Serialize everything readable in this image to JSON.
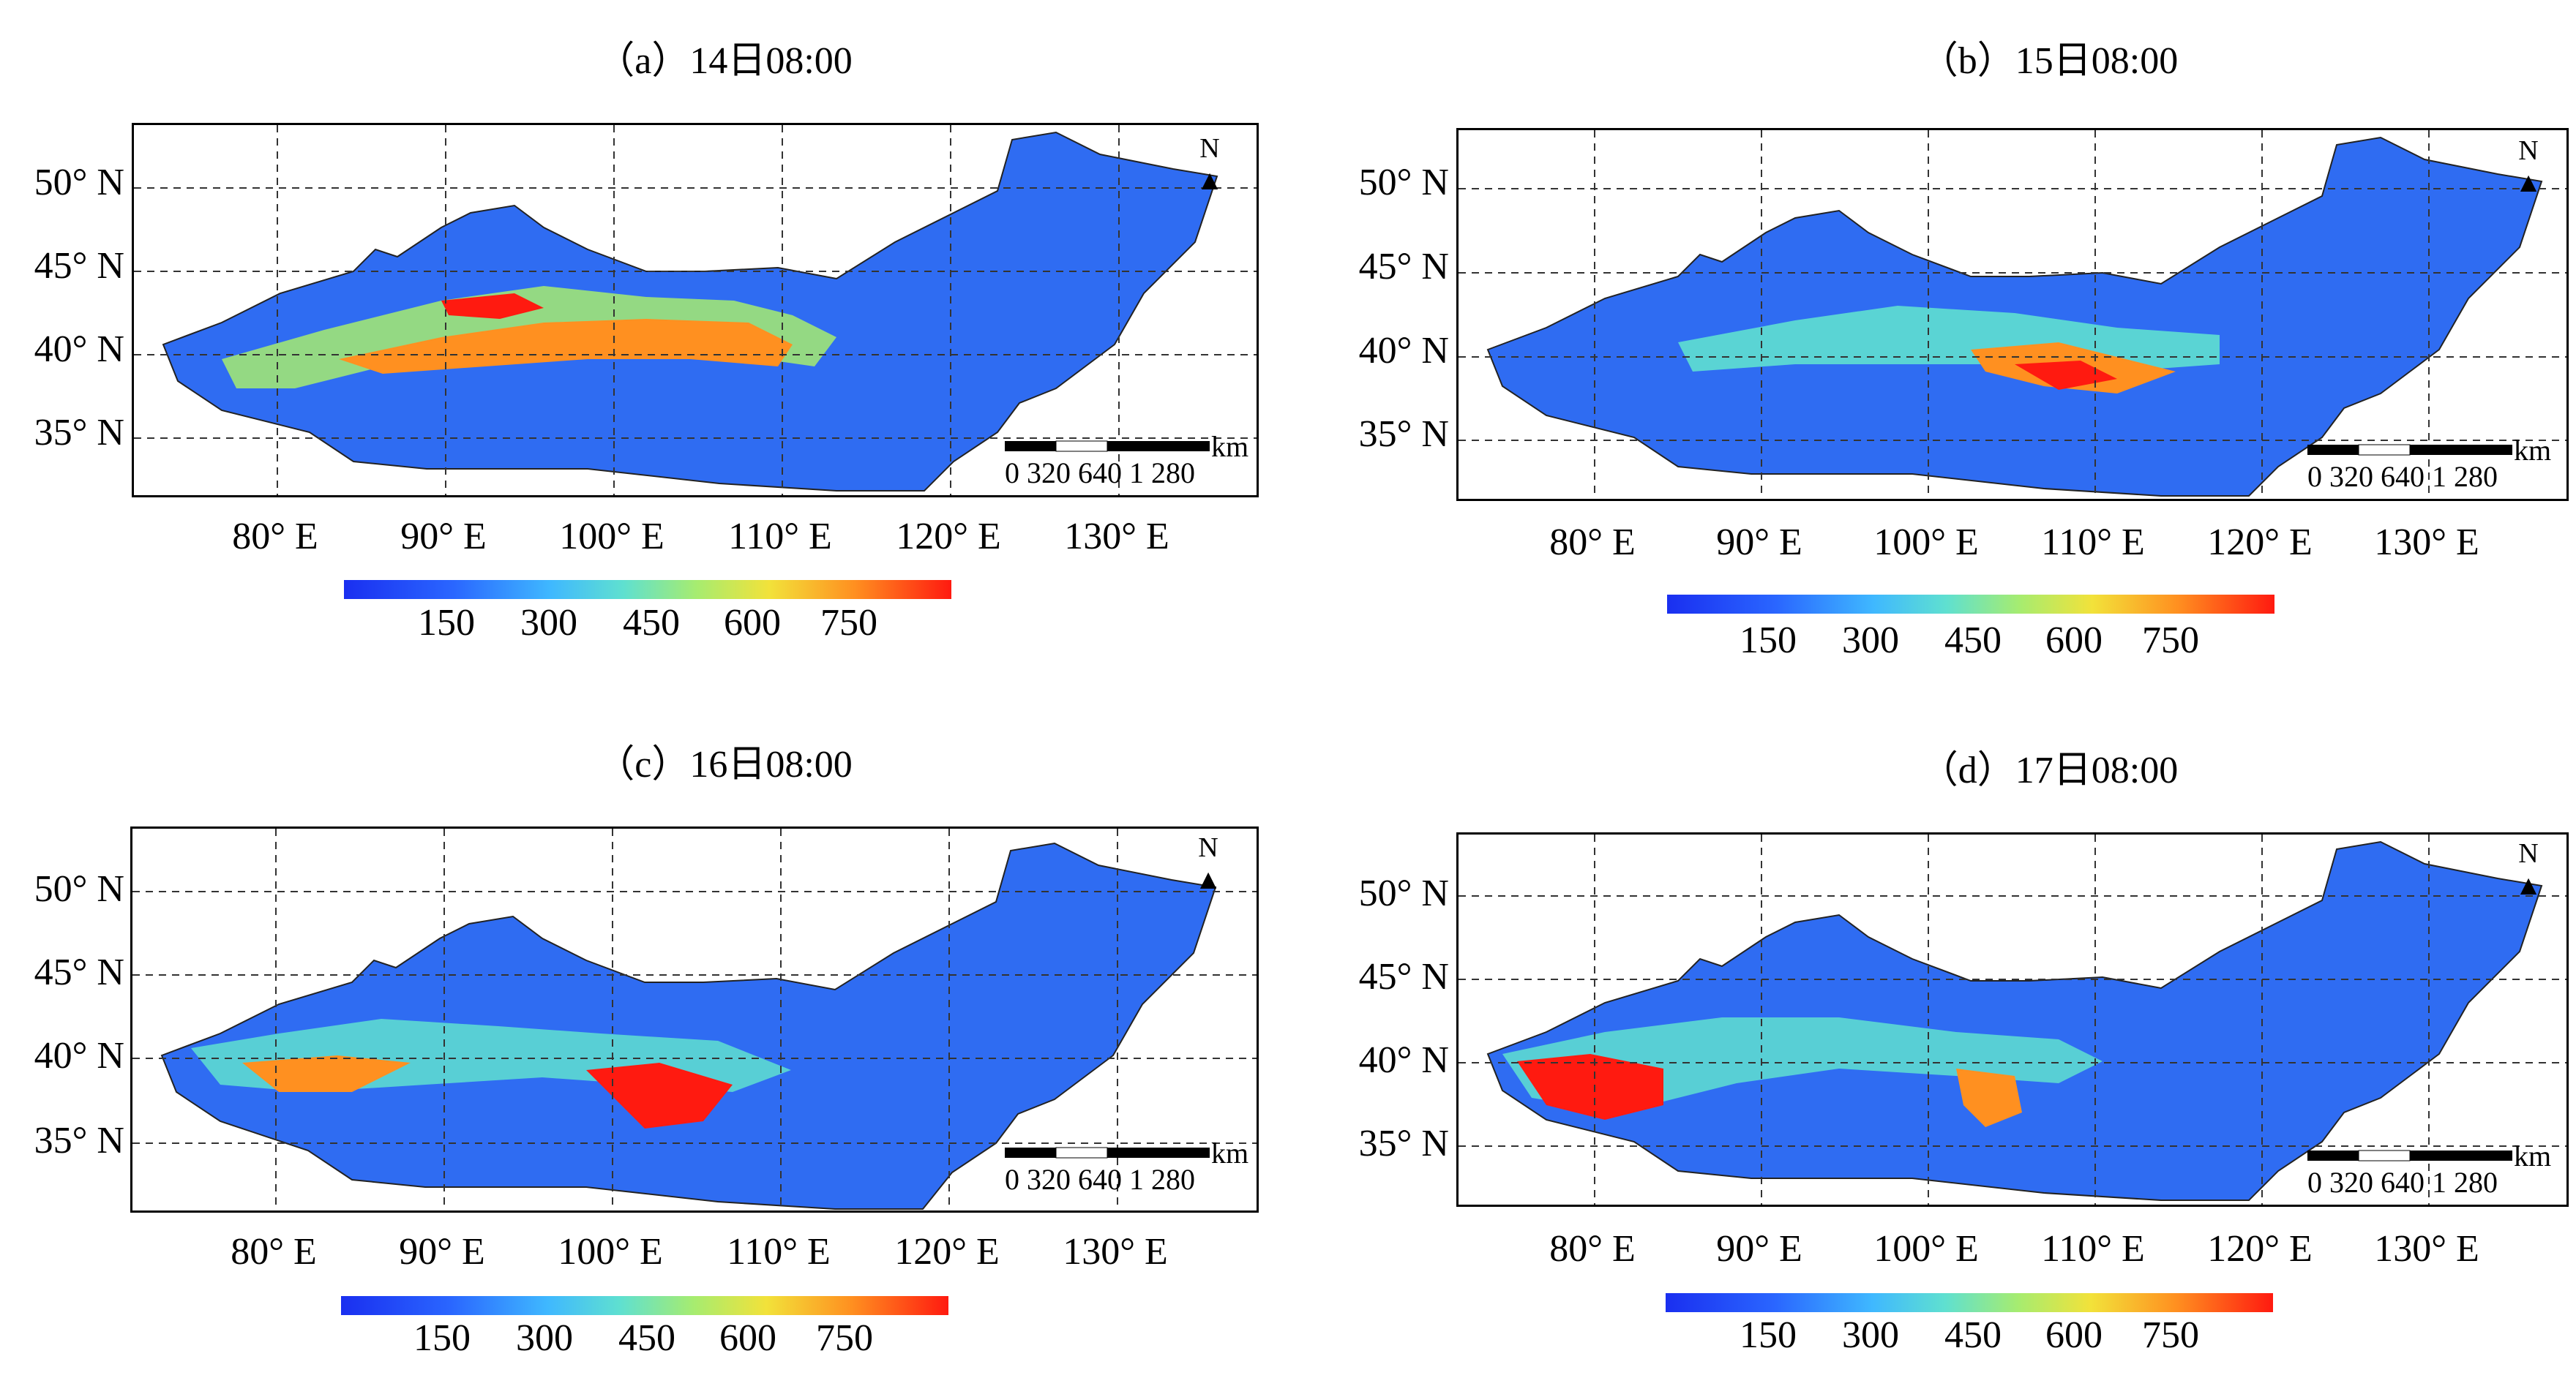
{
  "panels": [
    {
      "title": "（a）14日08:00"
    },
    {
      "title": "（b）15日08:00"
    },
    {
      "title": "（c）16日08:00"
    },
    {
      "title": "（d）17日08:00"
    }
  ],
  "lat_labels": [
    "50° N",
    "45° N",
    "40° N",
    "35° N"
  ],
  "lon_labels": [
    "80° E",
    "90° E",
    "100° E",
    "110° E",
    "120° E",
    "130° E"
  ],
  "colorbar": {
    "ticks": [
      "150",
      "300",
      "450",
      "600",
      "750"
    ],
    "colors": [
      "#1a2ff0",
      "#3fb8ff",
      "#a6ec70",
      "#f2e23a",
      "#ff1a10"
    ]
  },
  "scalebar": {
    "unit": "km",
    "ticks": "0 320 640 1 280"
  },
  "north_label": "N",
  "colors": {
    "low": "#1f4fff",
    "mid": "#5fe0d0",
    "high": "#ff1a10",
    "land_bg": "#2f6cf2"
  }
}
